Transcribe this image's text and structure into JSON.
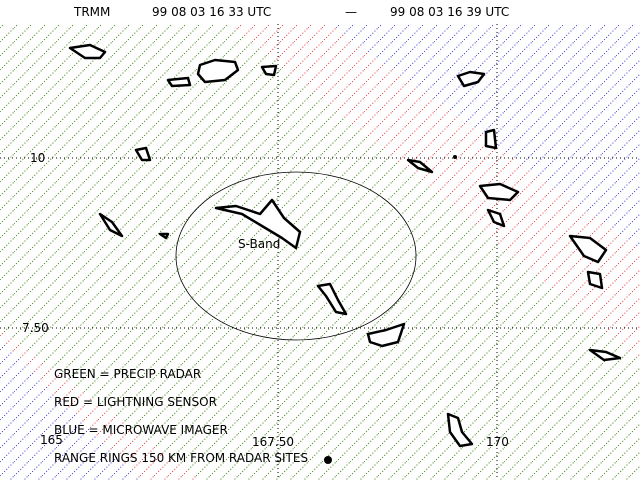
{
  "header": {
    "satellite": "TRMM",
    "start_time": "99 08 03 16 33 UTC",
    "separator": "—",
    "end_time": "99 08 03 16 39 UTC"
  },
  "axes": {
    "lat_labels": [
      "10",
      "7.50"
    ],
    "lon_labels": [
      "165",
      "167.50",
      "170"
    ]
  },
  "site_label": "S-Band",
  "legend": [
    "GREEN = PRECIP RADAR",
    "RED = LIGHTNING SENSOR",
    "BLUE = MICROWAVE IMAGER",
    "RANGE RINGS 150 KM FROM RADAR SITES"
  ]
}
